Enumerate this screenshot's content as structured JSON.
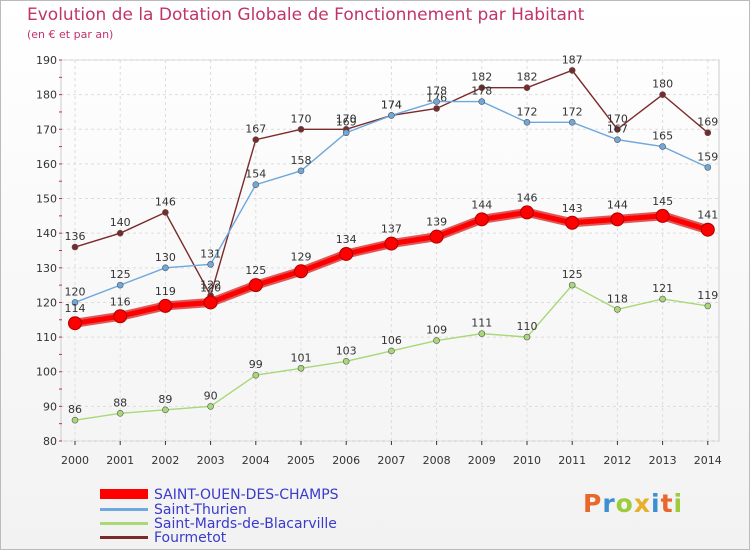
{
  "chart_data": {
    "type": "line",
    "title": "Evolution de la Dotation Globale de Fonctionnement par Habitant",
    "subtitle": "(en € et par an)",
    "x": [
      "2000",
      "2001",
      "2002",
      "2003",
      "2004",
      "2005",
      "2006",
      "2007",
      "2008",
      "2009",
      "2010",
      "2011",
      "2012",
      "2013",
      "2014"
    ],
    "ylim": [
      80,
      190
    ],
    "yticks": [
      "80",
      "90",
      "100",
      "110",
      "120",
      "130",
      "140",
      "150",
      "160",
      "170",
      "180",
      "190"
    ],
    "grid": true,
    "legend_position": "bottom-left",
    "series": [
      {
        "name": "SAINT-OUEN-DES-CHAMPS",
        "color": "#ff0000",
        "values": [
          114,
          116,
          119,
          120,
          125,
          129,
          134,
          137,
          139,
          144,
          146,
          143,
          144,
          145,
          141
        ],
        "labels": [
          "114",
          "116",
          "119",
          "120",
          "125",
          "129",
          "134",
          "137",
          "139",
          "144",
          "146",
          "143",
          "144",
          "145",
          "141"
        ]
      },
      {
        "name": "Saint-Thurien",
        "color": "#6fa8dc",
        "values": [
          120,
          125,
          130,
          131,
          154,
          158,
          169,
          174,
          178,
          178,
          172,
          172,
          167,
          165,
          159
        ],
        "labels": [
          "120",
          "125",
          "130",
          "131",
          "154",
          "158",
          "169",
          "174",
          "178",
          "178",
          "172",
          "172",
          "167",
          "165",
          "159"
        ]
      },
      {
        "name": "Saint-Mards-de-Blacarville",
        "color": "#a8d878",
        "values": [
          86,
          88,
          89,
          90,
          99,
          101,
          103,
          106,
          109,
          111,
          110,
          125,
          118,
          121,
          119
        ],
        "labels": [
          "86",
          "88",
          "89",
          "90",
          "99",
          "101",
          "103",
          "106",
          "109",
          "111",
          "110",
          "125",
          "118",
          "121",
          "119"
        ]
      },
      {
        "name": "Fourmetot",
        "color": "#7b2a2a",
        "values": [
          136,
          140,
          146,
          122,
          167,
          170,
          170,
          174,
          176,
          182,
          182,
          187,
          170,
          180,
          169
        ],
        "labels": [
          "136",
          "140",
          "146",
          "122",
          "167",
          "170",
          "170",
          "174",
          "176",
          "182",
          "182",
          "187",
          "170",
          "180",
          "169"
        ]
      }
    ]
  },
  "logo": {
    "text": "Proxiti",
    "colors": [
      "#e8672a",
      "#3d8fd1",
      "#9ccb3b",
      "#e8b02a",
      "#3d8fd1",
      "#e8672a",
      "#9ccb3b"
    ]
  }
}
